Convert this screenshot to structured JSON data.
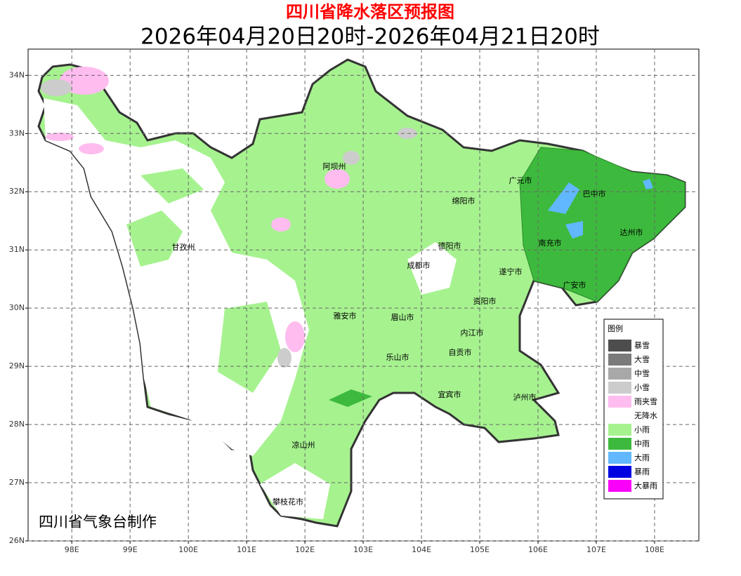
{
  "map": {
    "title": "四川省降水落区预报图",
    "subtitle": "2026年04月20日20时-2026年04月21日20时",
    "credit": "四川省气象台制作",
    "xlim": [
      97.25,
      108.76
    ],
    "ylim": [
      26,
      34.45
    ],
    "xticks": [
      {
        "value": 98,
        "label": "98E"
      },
      {
        "value": 99,
        "label": "99E"
      },
      {
        "value": 100,
        "label": "100E"
      },
      {
        "value": 101,
        "label": "101E"
      },
      {
        "value": 102,
        "label": "102E"
      },
      {
        "value": 103,
        "label": "103E"
      },
      {
        "value": 104,
        "label": "104E"
      },
      {
        "value": 105,
        "label": "105E"
      },
      {
        "value": 106,
        "label": "106E"
      },
      {
        "value": 107,
        "label": "107E"
      },
      {
        "value": 108,
        "label": "108E"
      }
    ],
    "yticks": [
      {
        "value": 26,
        "label": "26N"
      },
      {
        "value": 27,
        "label": "27N"
      },
      {
        "value": 28,
        "label": "28N"
      },
      {
        "value": 29,
        "label": "29N"
      },
      {
        "value": 30,
        "label": "30N"
      },
      {
        "value": 31,
        "label": "31N"
      },
      {
        "value": 32,
        "label": "32N"
      },
      {
        "value": 33,
        "label": "33N"
      },
      {
        "value": 34,
        "label": "34N"
      }
    ],
    "grid": true,
    "cities": [
      "阿坝州",
      "广元市",
      "巴中市",
      "绵阳市",
      "达州市",
      "南充市",
      "德阳市",
      "甘孜州",
      "成都市",
      "遂宁市",
      "广安市",
      "资阳市",
      "雅安市",
      "眉山市",
      "内江市",
      "自贡市",
      "乐山市",
      "宜宾市",
      "泸州市",
      "凉山州",
      "攀枝花市"
    ],
    "legend": {
      "title": "图例",
      "items": [
        {
          "name": "暴雪",
          "color": "#4d4d4d"
        },
        {
          "name": "大雪",
          "color": "#7a7a7a"
        },
        {
          "name": "中雪",
          "color": "#a8a8a8"
        },
        {
          "name": "小雪",
          "color": "#cccccc"
        },
        {
          "name": "雨夹雪",
          "color": "#ffbdef"
        },
        {
          "name": "无降水",
          "color": "#ffffff"
        },
        {
          "name": "小雨",
          "color": "#a6f28f"
        },
        {
          "name": "中雨",
          "color": "#3dba3d"
        },
        {
          "name": "大雨",
          "color": "#61b8ff"
        },
        {
          "name": "暴雨",
          "color": "#0000e1"
        },
        {
          "name": "大暴雨",
          "color": "#fa00fa"
        }
      ]
    }
  }
}
